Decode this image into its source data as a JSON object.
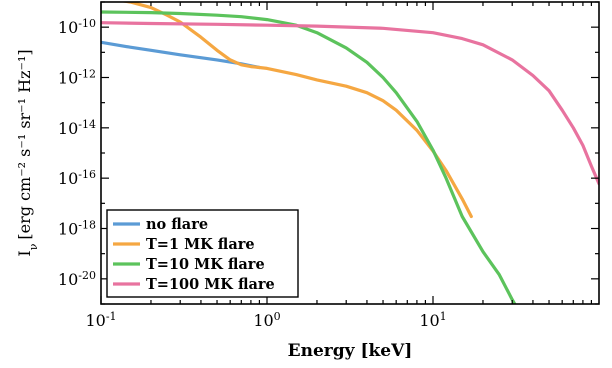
{
  "chart_data": {
    "type": "line",
    "x_scale": "log",
    "y_scale": "log",
    "xlabel": "Energy [keV]",
    "ylabel": {
      "base": "I",
      "sub": "ν",
      "units": "[erg cm⁻² s⁻¹ sr⁻¹ Hz⁻¹]"
    },
    "xlim": [
      0.1,
      100
    ],
    "ylim": [
      1e-21,
      1e-09
    ],
    "x_ticks": [
      {
        "value": 0.1,
        "base": "10",
        "exp": "-1"
      },
      {
        "value": 1,
        "base": "10",
        "exp": "0"
      },
      {
        "value": 10,
        "base": "10",
        "exp": "1"
      }
    ],
    "y_ticks": [
      {
        "value": 1e-10,
        "base": "10",
        "exp": "-10"
      },
      {
        "value": 1e-12,
        "base": "10",
        "exp": "-12"
      },
      {
        "value": 1e-14,
        "base": "10",
        "exp": "-14"
      },
      {
        "value": 1e-16,
        "base": "10",
        "exp": "-16"
      },
      {
        "value": 1e-18,
        "base": "10",
        "exp": "-18"
      },
      {
        "value": 1e-20,
        "base": "10",
        "exp": "-20"
      }
    ],
    "grid": false,
    "legend_position": "lower-left",
    "series": [
      {
        "name": "no flare",
        "color": "#5b9bd5",
        "x": [
          0.1,
          0.15,
          0.2,
          0.3,
          0.5,
          0.7,
          0.9
        ],
        "y": [
          2.5e-11,
          1.6e-11,
          1.2e-11,
          8e-12,
          5e-12,
          3.5e-12,
          2.5e-12
        ]
      },
      {
        "name": "T=1 MK flare",
        "color": "#f5a742",
        "x": [
          0.1,
          0.15,
          0.2,
          0.25,
          0.3,
          0.4,
          0.5,
          0.6,
          0.7,
          0.8,
          0.9,
          1.0,
          1.5,
          2,
          3,
          4,
          5,
          6,
          8,
          10,
          12,
          15,
          17
        ],
        "y": [
          1.5e-09,
          1e-09,
          6e-10,
          3e-10,
          1.6e-10,
          4e-11,
          1.2e-11,
          5e-12,
          3.2e-12,
          2.7e-12,
          2.5e-12,
          2.3e-12,
          1.3e-12,
          8e-13,
          4.5e-13,
          2.5e-13,
          1.2e-13,
          5e-14,
          8e-15,
          1.2e-15,
          2e-16,
          1.5e-17,
          3e-18
        ]
      },
      {
        "name": "T=10 MK flare",
        "color": "#5cc35c",
        "x": [
          0.1,
          0.2,
          0.3,
          0.5,
          0.7,
          1,
          1.5,
          2,
          3,
          4,
          5,
          6,
          8,
          10,
          12,
          15,
          20,
          25,
          30,
          33
        ],
        "y": [
          4e-10,
          3.8e-10,
          3.5e-10,
          3e-10,
          2.6e-10,
          2e-10,
          1.2e-10,
          6e-11,
          1.5e-11,
          4e-12,
          1e-12,
          2.5e-13,
          1.8e-14,
          1.3e-15,
          1e-16,
          3e-18,
          1.2e-19,
          1.5e-20,
          1.5e-21,
          5e-22
        ]
      },
      {
        "name": "T=100 MK flare",
        "color": "#e8739f",
        "x": [
          0.1,
          0.2,
          0.5,
          1,
          2,
          5,
          10,
          15,
          20,
          30,
          40,
          50,
          60,
          70,
          80,
          90,
          100
        ],
        "y": [
          1.5e-10,
          1.4e-10,
          1.3e-10,
          1.2e-10,
          1.1e-10,
          9e-11,
          6e-11,
          3.5e-11,
          2e-11,
          5e-12,
          1.2e-12,
          3e-13,
          5e-14,
          1e-14,
          2e-15,
          3e-16,
          6e-17
        ]
      }
    ]
  }
}
